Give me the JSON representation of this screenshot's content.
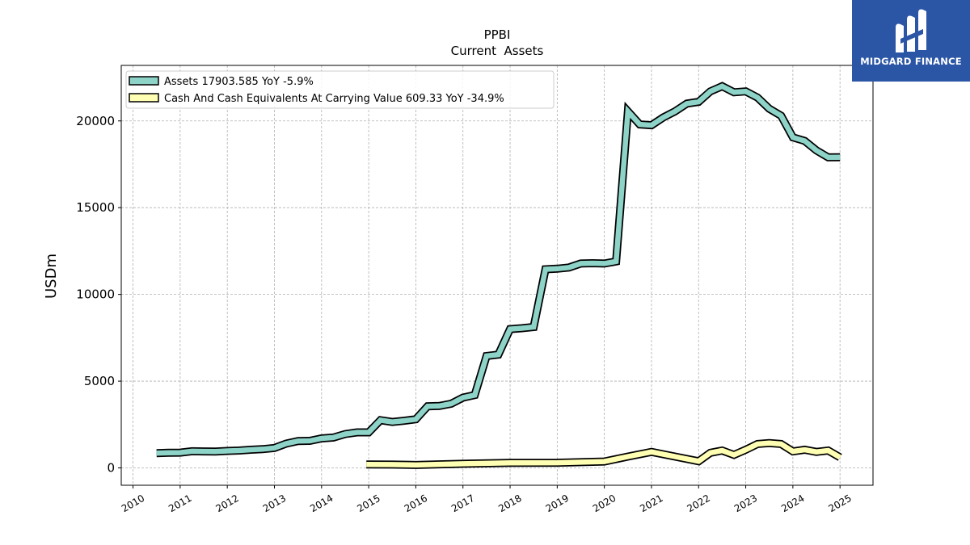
{
  "chart_data": {
    "type": "line",
    "title": "PPBI",
    "subtitle": "Current  Assets",
    "ylabel": "USDm",
    "xlabel": "",
    "xlim": [
      2009.75,
      2025.7
    ],
    "ylim": [
      -1000,
      23200
    ],
    "yticks": [
      0,
      5000,
      10000,
      15000,
      20000
    ],
    "xticks": [
      "2010",
      "2011",
      "2012",
      "2013",
      "2014",
      "2015",
      "2016",
      "2017",
      "2018",
      "2019",
      "2020",
      "2021",
      "2022",
      "2023",
      "2024",
      "2025"
    ],
    "grid": true,
    "legend_position": "top-left",
    "series": [
      {
        "name": "Assets  17903.585 YoY -5.9%",
        "color": "#8dd3c7",
        "points": [
          [
            2010.5,
            850
          ],
          [
            2010.75,
            870
          ],
          [
            2011.0,
            880
          ],
          [
            2011.25,
            960
          ],
          [
            2011.5,
            950
          ],
          [
            2011.75,
            940
          ],
          [
            2012.0,
            980
          ],
          [
            2012.25,
            1000
          ],
          [
            2012.5,
            1050
          ],
          [
            2012.75,
            1080
          ],
          [
            2013.0,
            1150
          ],
          [
            2013.25,
            1400
          ],
          [
            2013.5,
            1550
          ],
          [
            2013.75,
            1560
          ],
          [
            2014.0,
            1700
          ],
          [
            2014.25,
            1750
          ],
          [
            2014.5,
            1950
          ],
          [
            2014.75,
            2050
          ],
          [
            2015.0,
            2050
          ],
          [
            2015.25,
            2750
          ],
          [
            2015.5,
            2650
          ],
          [
            2015.75,
            2720
          ],
          [
            2016.0,
            2800
          ],
          [
            2016.25,
            3550
          ],
          [
            2016.5,
            3570
          ],
          [
            2016.75,
            3700
          ],
          [
            2017.0,
            4050
          ],
          [
            2017.25,
            4200
          ],
          [
            2017.5,
            6450
          ],
          [
            2017.75,
            6530
          ],
          [
            2018.0,
            8000
          ],
          [
            2018.25,
            8050
          ],
          [
            2018.5,
            8120
          ],
          [
            2018.75,
            11450
          ],
          [
            2019.0,
            11480
          ],
          [
            2019.25,
            11550
          ],
          [
            2019.5,
            11780
          ],
          [
            2019.75,
            11800
          ],
          [
            2020.0,
            11780
          ],
          [
            2020.25,
            11900
          ],
          [
            2020.5,
            20550
          ],
          [
            2020.75,
            19800
          ],
          [
            2021.0,
            19750
          ],
          [
            2021.25,
            20200
          ],
          [
            2021.5,
            20550
          ],
          [
            2021.75,
            21000
          ],
          [
            2022.0,
            21100
          ],
          [
            2022.25,
            21700
          ],
          [
            2022.5,
            22000
          ],
          [
            2022.75,
            21650
          ],
          [
            2023.0,
            21700
          ],
          [
            2023.25,
            21350
          ],
          [
            2023.5,
            20700
          ],
          [
            2023.75,
            20300
          ],
          [
            2024.0,
            19050
          ],
          [
            2024.25,
            18850
          ],
          [
            2024.5,
            18300
          ],
          [
            2024.75,
            17900
          ],
          [
            2025.0,
            17904
          ]
        ]
      },
      {
        "name": "Cash And Cash Equivalents At Carrying Value  609.33 YoY -34.9%",
        "color": "#ffffb3",
        "points": [
          [
            2014.95,
            200
          ],
          [
            2015.5,
            190
          ],
          [
            2016.0,
            170
          ],
          [
            2017.0,
            240
          ],
          [
            2018.0,
            290
          ],
          [
            2019.0,
            300
          ],
          [
            2020.0,
            370
          ],
          [
            2020.5,
            650
          ],
          [
            2021.0,
            920
          ],
          [
            2021.5,
            650
          ],
          [
            2022.0,
            380
          ],
          [
            2022.25,
            870
          ],
          [
            2022.5,
            1000
          ],
          [
            2022.75,
            750
          ],
          [
            2023.0,
            1050
          ],
          [
            2023.25,
            1380
          ],
          [
            2023.5,
            1430
          ],
          [
            2023.75,
            1380
          ],
          [
            2024.0,
            950
          ],
          [
            2024.25,
            1050
          ],
          [
            2024.5,
            920
          ],
          [
            2024.75,
            1000
          ],
          [
            2025.0,
            609
          ]
        ]
      }
    ]
  },
  "logo": {
    "text": "MIDGARD FINANCE",
    "background": "#2b56a6"
  }
}
